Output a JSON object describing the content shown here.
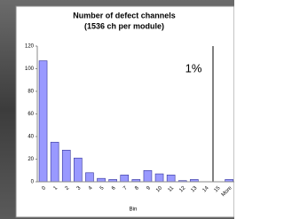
{
  "chart_data": {
    "type": "bar",
    "title": "Number of defect channels",
    "subtitle": "(1536 ch per module)",
    "x_label": "Bin",
    "annotation": "1%",
    "categories": [
      "0",
      "1",
      "2",
      "3",
      "4",
      "5",
      "6",
      "7",
      "8",
      "9",
      "10",
      "11",
      "12",
      "13",
      "14",
      "15",
      "More"
    ],
    "values": [
      107,
      35,
      28,
      21,
      8,
      3,
      2,
      6,
      2,
      10,
      7,
      6,
      1,
      2,
      0,
      0,
      2
    ],
    "color": "#9999ff",
    "ylim": [
      0,
      120
    ],
    "yticks": [
      0,
      20,
      40,
      60,
      80,
      100,
      120
    ],
    "grid": false
  }
}
